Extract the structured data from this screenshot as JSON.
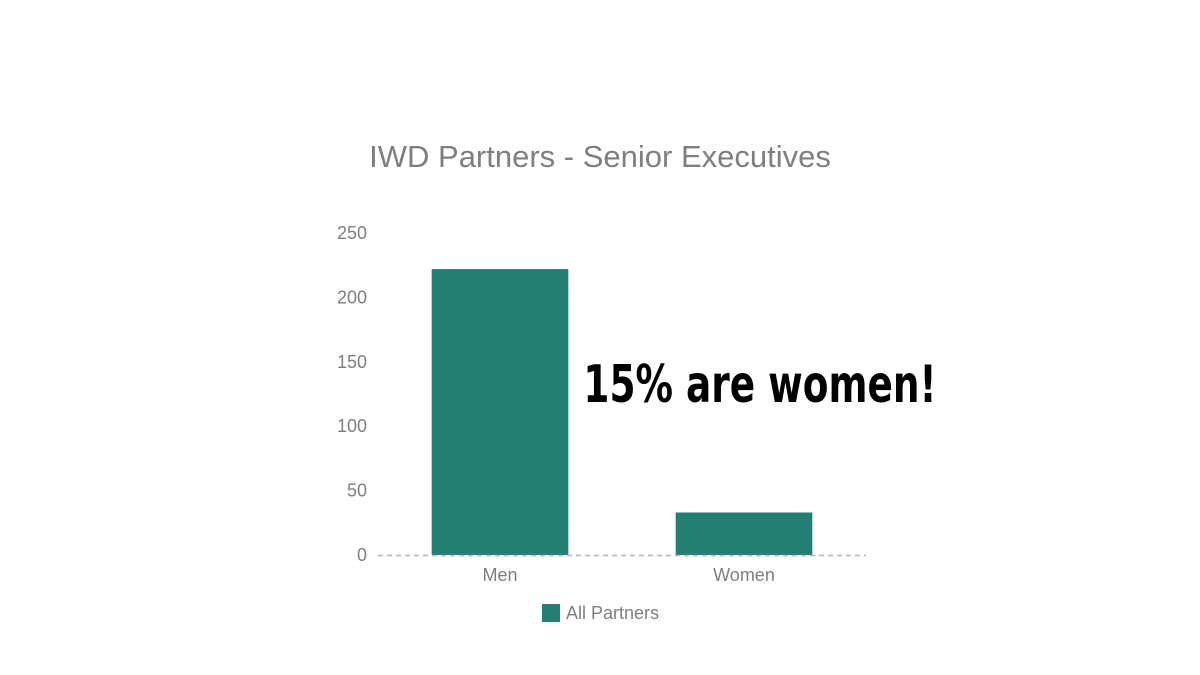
{
  "chart_data": {
    "type": "bar",
    "title": "IWD Partners - Senior Executives",
    "categories": [
      "Men",
      "Women"
    ],
    "series": [
      {
        "name": "All Partners",
        "values": [
          222,
          33
        ],
        "color": "#237f74"
      }
    ],
    "ylim": [
      0,
      250
    ],
    "yticks": [
      0,
      50,
      100,
      150,
      200,
      250
    ],
    "xlabel": "",
    "ylabel": "",
    "grid": false,
    "baseline_style": "dashed",
    "legend_position": "bottom",
    "annotation": "15% are women!"
  }
}
